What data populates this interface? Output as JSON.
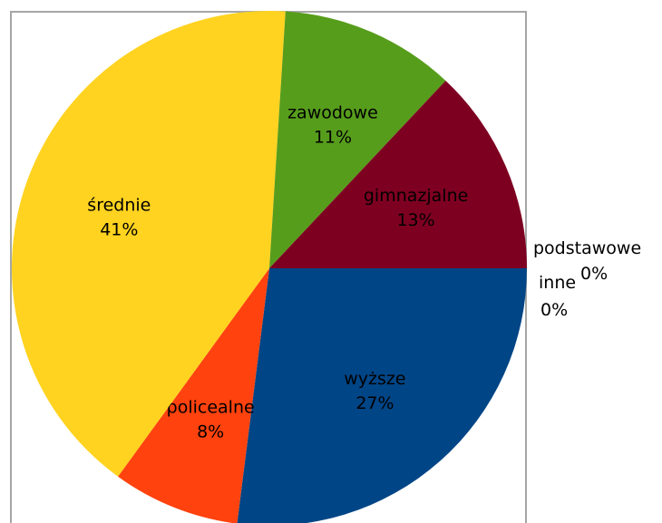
{
  "chart_data": {
    "type": "pie",
    "slices": [
      {
        "label": "wyższe",
        "value": 27,
        "value_label": "27%",
        "color": "#004586",
        "text_color": "#000000"
      },
      {
        "label": "policealne",
        "value": 8,
        "value_label": "8%",
        "color": "#ff420e",
        "text_color": "#000000"
      },
      {
        "label": "średnie",
        "value": 41,
        "value_label": "41%",
        "color": "#ffd320",
        "text_color": "#000000"
      },
      {
        "label": "zawodowe",
        "value": 11,
        "value_label": "11%",
        "color": "#579d1c",
        "text_color": "#000000"
      },
      {
        "label": "gimnazjalne",
        "value": 13,
        "value_label": "13%",
        "color": "#7e0021",
        "text_color": "#000000"
      },
      {
        "label": "podstawowe",
        "value": 0,
        "value_label": "0%",
        "color": "#83caff",
        "text_color": "#000000"
      },
      {
        "label": "inne",
        "value": 0,
        "value_label": "0%",
        "color": "#314004",
        "text_color": "#000000"
      }
    ]
  }
}
